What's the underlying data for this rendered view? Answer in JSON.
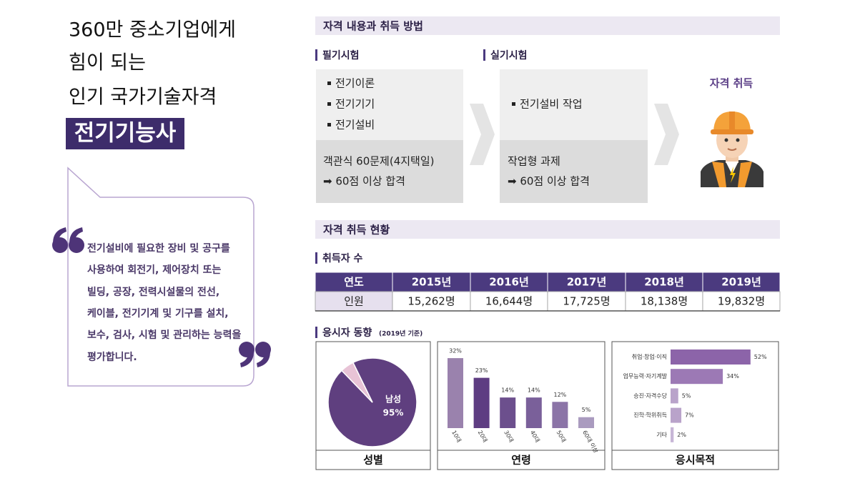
{
  "left": {
    "title_lines": [
      "360만 중소기업에게",
      "힘이 되는",
      "인기 국가기술자격"
    ],
    "highlight": "전기기능사",
    "description_lines": [
      "전기설비에 필요한 장비 및 공구를",
      "사용하여 회전기, 제어장치 또는",
      "빌딩, 공장, 전력시설물의 전선,",
      "케이블, 전기기계 및 기구를 설치,",
      "보수, 검사, 시험 및 관리하는 능력을",
      "평가합니다."
    ]
  },
  "section1": {
    "title": "자격 내용과 취득 방법",
    "written": {
      "label": "필기시험",
      "items": [
        "전기이론",
        "전기기기",
        "전기설비"
      ],
      "detail_lines": [
        "객관식 60문제(4지택일)",
        "➡ 60점 이상 합격"
      ]
    },
    "practical": {
      "label": "실기시험",
      "items": [
        "전기설비 작업"
      ],
      "detail_lines": [
        "작업형 과제",
        "➡ 60점 이상 합격"
      ]
    },
    "result": "자격 취득"
  },
  "section2": {
    "title": "자격 취득 현황",
    "holders": {
      "label": "취득자 수",
      "table": {
        "header": [
          "연도",
          "2015년",
          "2016년",
          "2017년",
          "2018년",
          "2019년"
        ],
        "rows": [
          [
            "인원",
            "15,262명",
            "16,644명",
            "17,725명",
            "18,138명",
            "19,832명"
          ]
        ]
      }
    },
    "trend": {
      "label": "응시자 동향",
      "note": "(2019년 기준)"
    }
  },
  "chart_data": [
    {
      "type": "pie",
      "title": "성별",
      "categories": [
        "남성",
        null
      ],
      "values": [
        95,
        5
      ],
      "value_labels": [
        "95%",
        null
      ],
      "colors": [
        "#5f3f7f",
        "#e8c3d6"
      ]
    },
    {
      "type": "bar",
      "title": "연령",
      "categories": [
        "10대",
        "20대",
        "30대",
        "40대",
        "50대",
        "60대 이상"
      ],
      "values": [
        32,
        23,
        14,
        14,
        12,
        5
      ],
      "value_labels": [
        "32%",
        "23%",
        "14%",
        "14%",
        "12%",
        "5%"
      ],
      "colors": [
        "#9a82ad",
        "#5e3d82",
        "#6c4f8d",
        "#7a609a",
        "#8b74a7",
        "#aa9bbf"
      ]
    },
    {
      "type": "hbar",
      "title": "응시목적",
      "categories": [
        "취업·창업·이직",
        "업무능력·자기계발",
        "승진·자격수당",
        "진학·학위취득",
        "기타"
      ],
      "values": [
        52,
        34,
        5,
        7,
        2
      ],
      "value_labels": [
        "52%",
        "34%",
        "5%",
        "7%",
        "2%"
      ],
      "colors": [
        "#8c64a9",
        "#9c79b5",
        "#b9a3ca",
        "#b9a3ca",
        "#c7b6d6"
      ]
    }
  ]
}
